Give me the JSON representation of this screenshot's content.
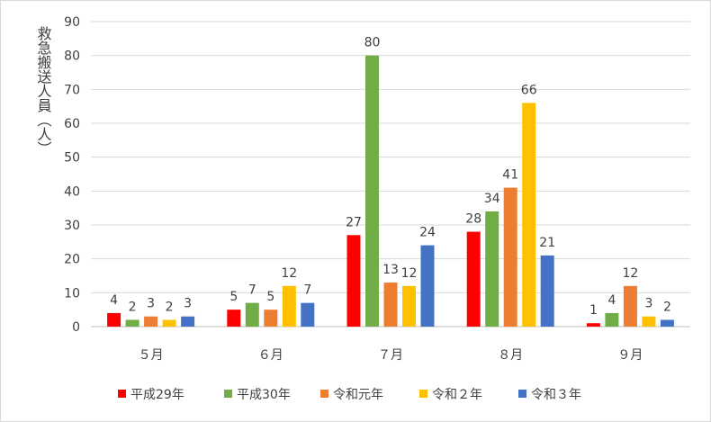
{
  "chart_data": {
    "type": "bar",
    "categories": [
      "５月",
      "６月",
      "７月",
      "８月",
      "９月"
    ],
    "series": [
      {
        "name": "平成29年",
        "color": "#ff0000",
        "values": [
          4,
          5,
          27,
          28,
          1
        ]
      },
      {
        "name": "平成30年",
        "color": "#70ad47",
        "values": [
          2,
          7,
          80,
          34,
          4
        ]
      },
      {
        "name": "令和元年",
        "color": "#ed7d31",
        "values": [
          3,
          5,
          13,
          41,
          12
        ]
      },
      {
        "name": "令和２年",
        "color": "#ffc000",
        "values": [
          2,
          12,
          12,
          66,
          3
        ]
      },
      {
        "name": "令和３年",
        "color": "#4472c4",
        "values": [
          3,
          7,
          24,
          21,
          2
        ]
      }
    ],
    "ylabel": "救急搬送人員（人）",
    "ylim": [
      0,
      90
    ],
    "yticks": [
      0,
      10,
      20,
      30,
      40,
      50,
      60,
      70,
      80,
      90
    ],
    "grid": true,
    "legend_position": "bottom",
    "data_labels": true
  }
}
